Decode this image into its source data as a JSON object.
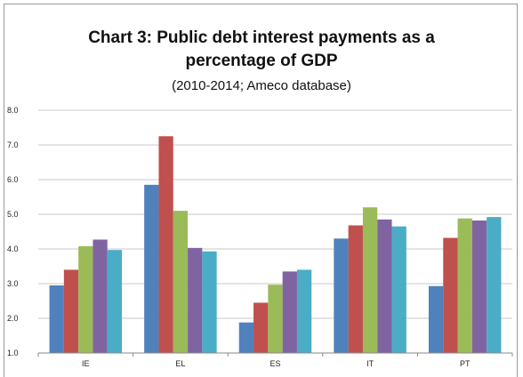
{
  "chart_data": {
    "type": "bar",
    "title_line1": "Chart 3: Public debt interest payments as a",
    "title_line2": "percentage of GDP",
    "subtitle": "(2010-2014; Ameco database)",
    "categories": [
      "IE",
      "EL",
      "ES",
      "IT",
      "PT"
    ],
    "series": [
      {
        "values": [
          2.95,
          5.85,
          1.88,
          4.3,
          2.93
        ],
        "color": "#4f81bd"
      },
      {
        "values": [
          3.4,
          7.25,
          2.45,
          4.68,
          4.32
        ],
        "color": "#c0504d"
      },
      {
        "values": [
          4.08,
          5.1,
          2.97,
          5.2,
          4.88
        ],
        "color": "#9bbb59"
      },
      {
        "values": [
          4.27,
          4.03,
          3.35,
          4.85,
          4.82
        ],
        "color": "#8064a2"
      },
      {
        "values": [
          3.97,
          3.93,
          3.4,
          4.65,
          4.92
        ],
        "color": "#4bacc6"
      }
    ],
    "yticks": [
      "1.0",
      "2.0",
      "3.0",
      "4.0",
      "5.0",
      "6.0",
      "7.0",
      "8.0"
    ],
    "ylim": [
      1.0,
      8.0
    ],
    "grid": true
  }
}
